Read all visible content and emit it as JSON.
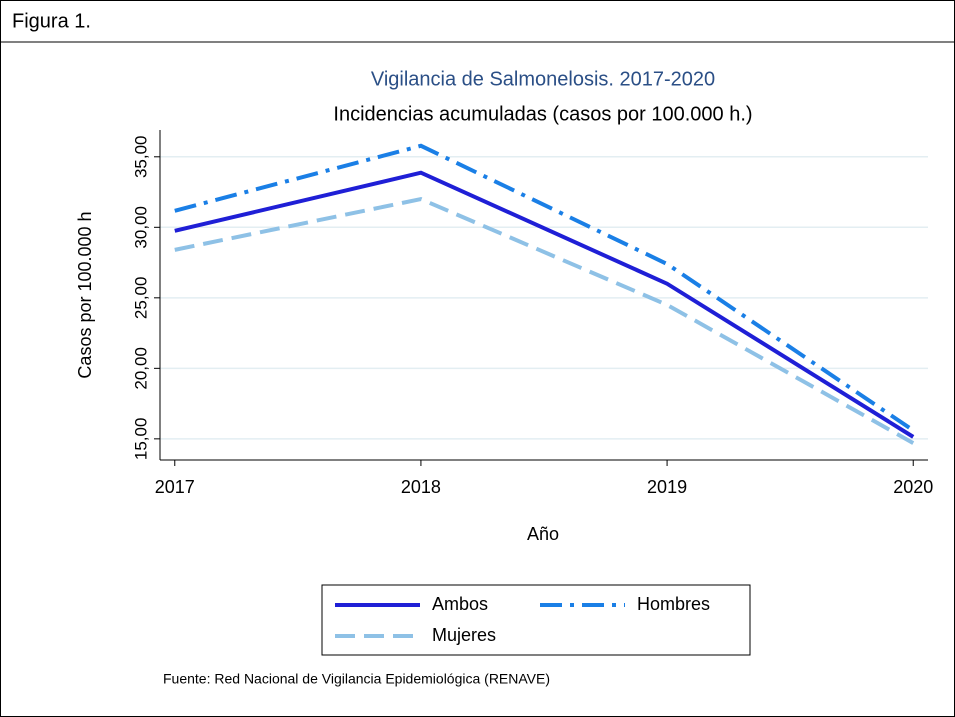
{
  "header": {
    "title": "Figura 1."
  },
  "chart_data": {
    "type": "line",
    "title": "Vigilancia de Salmonelosis. 2017-2020",
    "subtitle": "Incidencias acumuladas (casos por 100.000 h.)",
    "ylabel": "Casos por 100.000 h",
    "xlabel": "Año",
    "x": [
      2017,
      2018,
      2019,
      2020
    ],
    "xlim": [
      2016.94,
      2020.06
    ],
    "xticks": [
      2017,
      2018,
      2019,
      2020
    ],
    "ylim": [
      13.5,
      36.9
    ],
    "yticks": [
      {
        "value": 15,
        "label": "15,00"
      },
      {
        "value": 20,
        "label": "20,00"
      },
      {
        "value": 25,
        "label": "25,00"
      },
      {
        "value": 30,
        "label": "30,00"
      },
      {
        "value": 35,
        "label": "35,00"
      }
    ],
    "grid": true,
    "series": [
      {
        "name": "Ambos",
        "color": "#1f1fd6",
        "style": "solid",
        "values": [
          29.75,
          33.87,
          26.0,
          15.14
        ]
      },
      {
        "name": "Hombres",
        "color": "#1a7fe6",
        "style": "dashdot",
        "values": [
          31.17,
          35.78,
          27.4,
          15.6
        ]
      },
      {
        "name": "Mujeres",
        "color": "#8ec1e6",
        "style": "dashed",
        "values": [
          28.4,
          32.0,
          24.5,
          14.7
        ]
      }
    ],
    "legend": "bottom",
    "source": "Fuente: Red Nacional de Vigilancia Epidemiológica (RENAVE)"
  }
}
